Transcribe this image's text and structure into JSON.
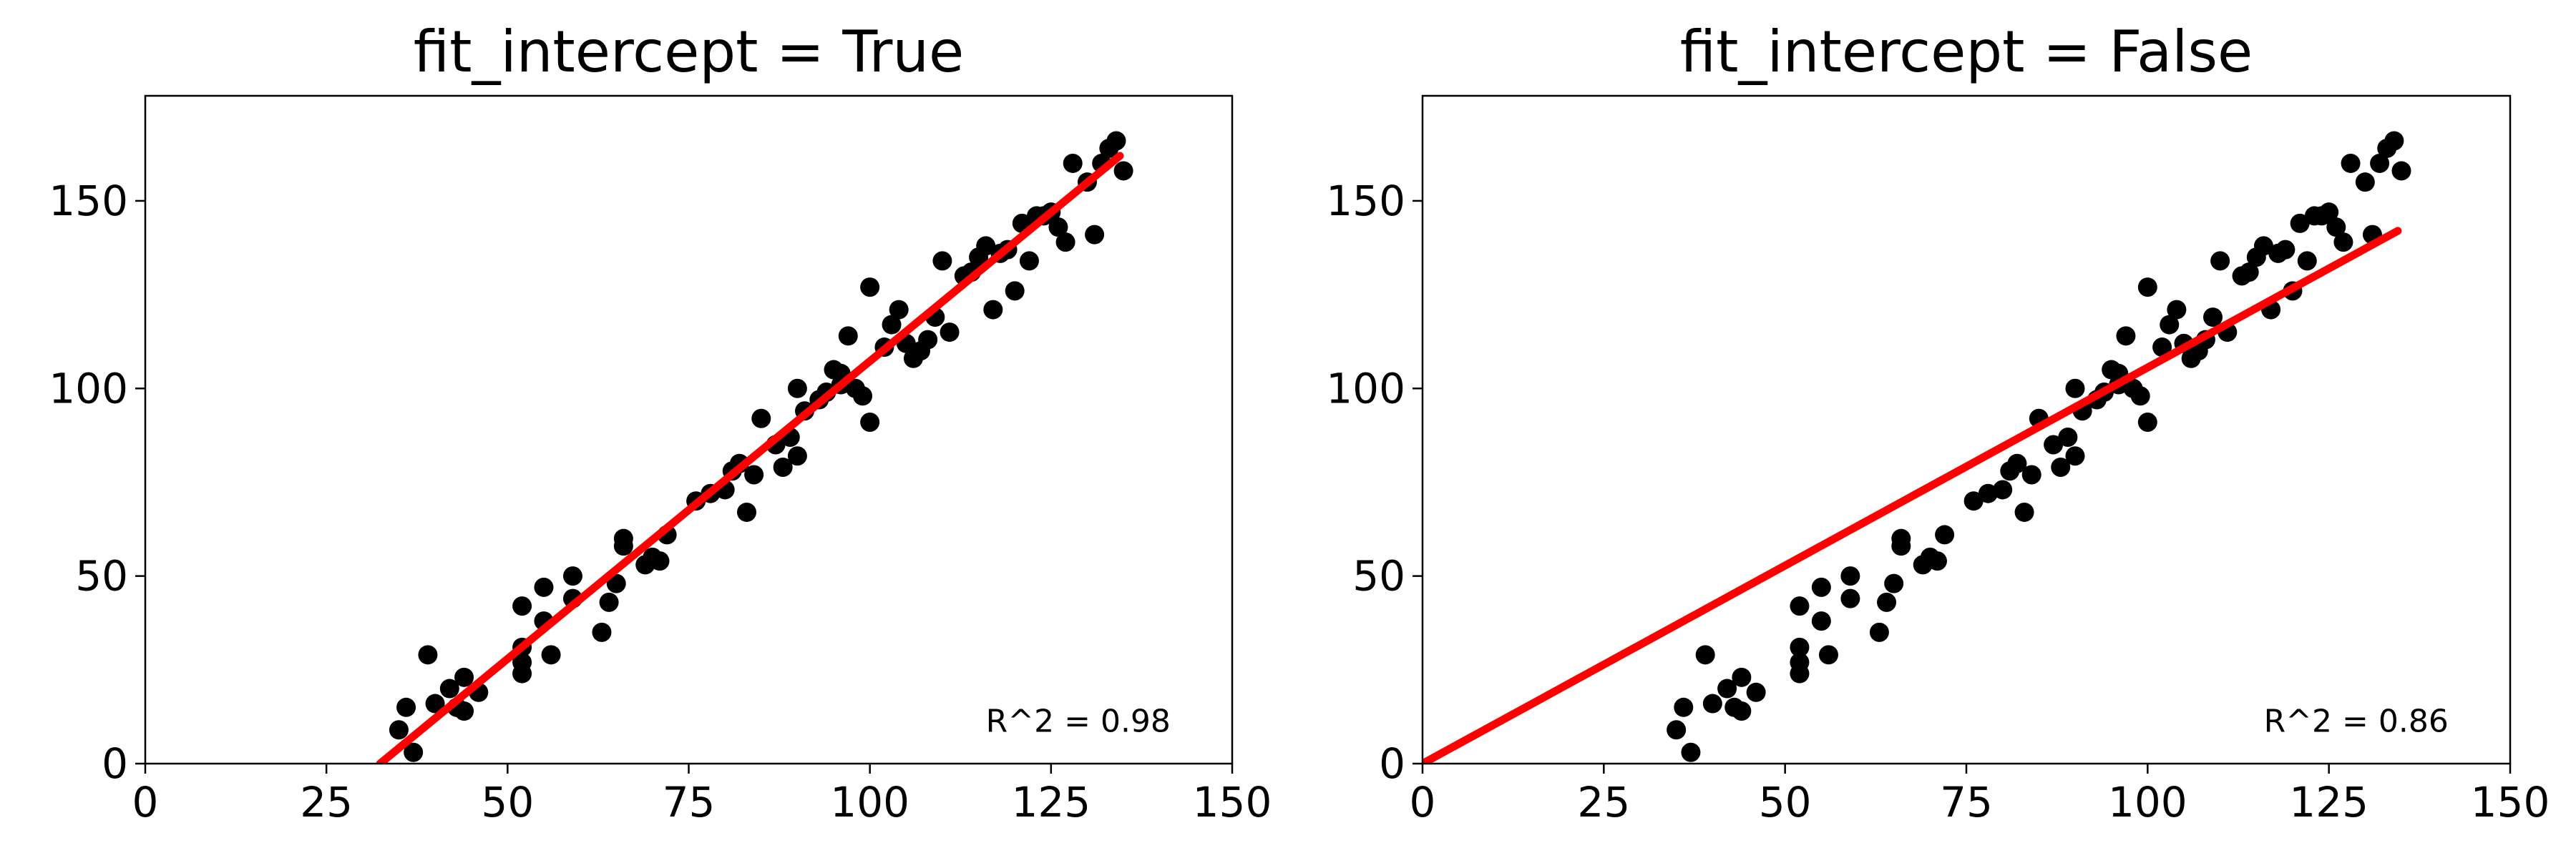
{
  "chart_data": [
    {
      "type": "scatter",
      "title": "fit_intercept = True",
      "xlabel": "",
      "ylabel": "",
      "xlim": [
        0,
        150
      ],
      "ylim": [
        0,
        178
      ],
      "xticks": [
        0,
        25,
        50,
        75,
        100,
        125,
        150
      ],
      "yticks": [
        0,
        50,
        100,
        150
      ],
      "grid": false,
      "point_color": "#000000",
      "line_color": "#ff0000",
      "annotation": "R^2 = 0.98",
      "points": [
        [
          35,
          9
        ],
        [
          36,
          15
        ],
        [
          37,
          3
        ],
        [
          39,
          29
        ],
        [
          40,
          16
        ],
        [
          42,
          20
        ],
        [
          43,
          15
        ],
        [
          44,
          23
        ],
        [
          44,
          14
        ],
        [
          46,
          19
        ],
        [
          52,
          31
        ],
        [
          52,
          27
        ],
        [
          52,
          24
        ],
        [
          52,
          42
        ],
        [
          55,
          47
        ],
        [
          55,
          38
        ],
        [
          56,
          29
        ],
        [
          59,
          44
        ],
        [
          59,
          50
        ],
        [
          63,
          35
        ],
        [
          64,
          43
        ],
        [
          65,
          48
        ],
        [
          66,
          58
        ],
        [
          66,
          60
        ],
        [
          69,
          53
        ],
        [
          70,
          55
        ],
        [
          71,
          54
        ],
        [
          72,
          61
        ],
        [
          76,
          70
        ],
        [
          78,
          72
        ],
        [
          80,
          73
        ],
        [
          81,
          78
        ],
        [
          82,
          80
        ],
        [
          83,
          67
        ],
        [
          84,
          77
        ],
        [
          85,
          92
        ],
        [
          87,
          85
        ],
        [
          88,
          79
        ],
        [
          89,
          87
        ],
        [
          90,
          82
        ],
        [
          90,
          100
        ],
        [
          91,
          94
        ],
        [
          93,
          97
        ],
        [
          94,
          99
        ],
        [
          95,
          105
        ],
        [
          96,
          104
        ],
        [
          96,
          101
        ],
        [
          97,
          114
        ],
        [
          98,
          100
        ],
        [
          99,
          98
        ],
        [
          100,
          91
        ],
        [
          100,
          127
        ],
        [
          102,
          111
        ],
        [
          103,
          117
        ],
        [
          104,
          121
        ],
        [
          105,
          112
        ],
        [
          106,
          108
        ],
        [
          107,
          110
        ],
        [
          108,
          113
        ],
        [
          109,
          119
        ],
        [
          110,
          134
        ],
        [
          111,
          115
        ],
        [
          113,
          130
        ],
        [
          114,
          131
        ],
        [
          115,
          135
        ],
        [
          116,
          138
        ],
        [
          117,
          121
        ],
        [
          118,
          136
        ],
        [
          119,
          137
        ],
        [
          120,
          126
        ],
        [
          121,
          144
        ],
        [
          122,
          134
        ],
        [
          123,
          146
        ],
        [
          124,
          146
        ],
        [
          125,
          147
        ],
        [
          126,
          143
        ],
        [
          127,
          139
        ],
        [
          128,
          160
        ],
        [
          130,
          155
        ],
        [
          131,
          141
        ],
        [
          132,
          160
        ],
        [
          133,
          164
        ],
        [
          134,
          166
        ],
        [
          135,
          158
        ]
      ],
      "fit": [
        [
          32.4,
          0
        ],
        [
          134.5,
          162
        ]
      ]
    },
    {
      "type": "scatter",
      "title": "fit_intercept = False",
      "xlabel": "",
      "ylabel": "",
      "xlim": [
        0,
        150
      ],
      "ylim": [
        0,
        178
      ],
      "xticks": [
        0,
        25,
        50,
        75,
        100,
        125,
        150
      ],
      "yticks": [
        0,
        50,
        100,
        150
      ],
      "grid": false,
      "point_color": "#000000",
      "line_color": "#ff0000",
      "annotation": "R^2 = 0.86",
      "points": [
        [
          35,
          9
        ],
        [
          36,
          15
        ],
        [
          37,
          3
        ],
        [
          39,
          29
        ],
        [
          40,
          16
        ],
        [
          42,
          20
        ],
        [
          43,
          15
        ],
        [
          44,
          23
        ],
        [
          44,
          14
        ],
        [
          46,
          19
        ],
        [
          52,
          31
        ],
        [
          52,
          27
        ],
        [
          52,
          24
        ],
        [
          52,
          42
        ],
        [
          55,
          47
        ],
        [
          55,
          38
        ],
        [
          56,
          29
        ],
        [
          59,
          44
        ],
        [
          59,
          50
        ],
        [
          63,
          35
        ],
        [
          64,
          43
        ],
        [
          65,
          48
        ],
        [
          66,
          58
        ],
        [
          66,
          60
        ],
        [
          69,
          53
        ],
        [
          70,
          55
        ],
        [
          71,
          54
        ],
        [
          72,
          61
        ],
        [
          76,
          70
        ],
        [
          78,
          72
        ],
        [
          80,
          73
        ],
        [
          81,
          78
        ],
        [
          82,
          80
        ],
        [
          83,
          67
        ],
        [
          84,
          77
        ],
        [
          85,
          92
        ],
        [
          87,
          85
        ],
        [
          88,
          79
        ],
        [
          89,
          87
        ],
        [
          90,
          82
        ],
        [
          90,
          100
        ],
        [
          91,
          94
        ],
        [
          93,
          97
        ],
        [
          94,
          99
        ],
        [
          95,
          105
        ],
        [
          96,
          104
        ],
        [
          96,
          101
        ],
        [
          97,
          114
        ],
        [
          98,
          100
        ],
        [
          99,
          98
        ],
        [
          100,
          91
        ],
        [
          100,
          127
        ],
        [
          102,
          111
        ],
        [
          103,
          117
        ],
        [
          104,
          121
        ],
        [
          105,
          112
        ],
        [
          106,
          108
        ],
        [
          107,
          110
        ],
        [
          108,
          113
        ],
        [
          109,
          119
        ],
        [
          110,
          134
        ],
        [
          111,
          115
        ],
        [
          113,
          130
        ],
        [
          114,
          131
        ],
        [
          115,
          135
        ],
        [
          116,
          138
        ],
        [
          117,
          121
        ],
        [
          118,
          136
        ],
        [
          119,
          137
        ],
        [
          120,
          126
        ],
        [
          121,
          144
        ],
        [
          122,
          134
        ],
        [
          123,
          146
        ],
        [
          124,
          146
        ],
        [
          125,
          147
        ],
        [
          126,
          143
        ],
        [
          127,
          139
        ],
        [
          128,
          160
        ],
        [
          130,
          155
        ],
        [
          131,
          141
        ],
        [
          132,
          160
        ],
        [
          133,
          164
        ],
        [
          134,
          166
        ],
        [
          135,
          158
        ]
      ],
      "fit": [
        [
          0,
          0
        ],
        [
          134.5,
          142
        ]
      ]
    }
  ]
}
